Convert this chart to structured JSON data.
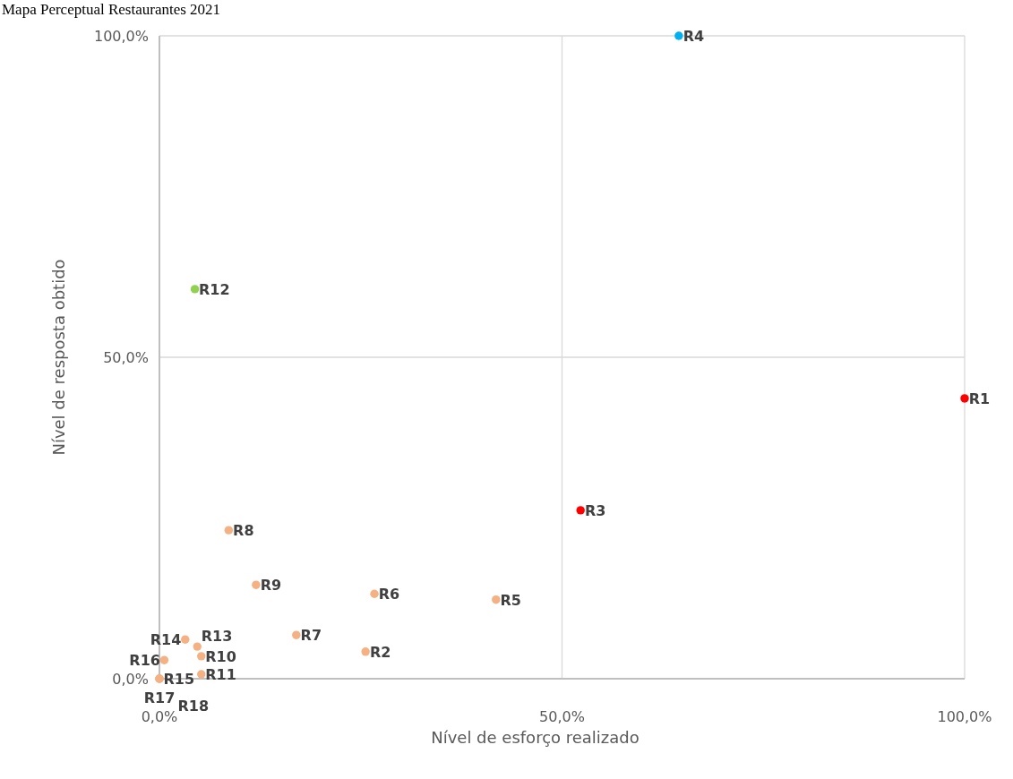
{
  "chart_data": {
    "type": "scatter",
    "title": "Mapa Perceptual Restaurantes 2021",
    "xlabel": "Nível de esforço realizado",
    "ylabel": "Nível de resposta obtido",
    "series": [
      {
        "x": [
          100,
          25.6,
          52.3,
          64.5,
          41.8,
          26.7,
          17.0,
          8.6,
          12.0,
          5.2,
          5.2,
          4.4,
          4.7,
          3.2,
          0,
          0.6,
          0,
          0
        ],
        "values": [
          43.6,
          4.2,
          26.2,
          100,
          12.3,
          13.2,
          6.8,
          23.1,
          14.6,
          3.5,
          0.7,
          60.6,
          5.0,
          6.1,
          0,
          2.9,
          0,
          0
        ],
        "colors": [
          "#ff0000",
          "#f4b183",
          "#ff0000",
          "#00b0f0",
          "#f4b183",
          "#f4b183",
          "#f4b183",
          "#f4b183",
          "#f4b183",
          "#f4b183",
          "#f4b183",
          "#92d050",
          "#f4b183",
          "#f4b183",
          "#f4b183",
          "#f4b183",
          "#f4b183",
          "#f4b183"
        ]
      }
    ],
    "annotations": [
      {
        "text": "R1",
        "x": 100,
        "y": 43.6
      },
      {
        "text": "R2",
        "x": 25.6,
        "y": 4.2
      },
      {
        "text": "R3",
        "x": 52.3,
        "y": 26.2
      },
      {
        "text": "R4",
        "x": 64.5,
        "y": 100
      },
      {
        "text": "R5",
        "x": 41.8,
        "y": 12.3
      },
      {
        "text": "R6",
        "x": 26.7,
        "y": 13.2
      },
      {
        "text": "R7",
        "x": 17.0,
        "y": 6.8
      },
      {
        "text": "R8",
        "x": 8.6,
        "y": 23.1
      },
      {
        "text": "R9",
        "x": 12.0,
        "y": 14.6
      },
      {
        "text": "R10",
        "x": 5.2,
        "y": 3.5
      },
      {
        "text": "R11",
        "x": 5.2,
        "y": 0.7
      },
      {
        "text": "R12",
        "x": 4.4,
        "y": 60.6
      },
      {
        "text": "R13",
        "x": 4.7,
        "y": 5.0
      },
      {
        "text": "R14",
        "x": 3.2,
        "y": 6.1
      },
      {
        "text": "R15",
        "x": 0,
        "y": 0
      },
      {
        "text": "R16",
        "x": 0.6,
        "y": 2.9
      },
      {
        "text": "R17",
        "x": 0,
        "y": 0
      },
      {
        "text": "R18",
        "x": 0,
        "y": 0
      }
    ],
    "xlim": [
      0,
      100
    ],
    "ylim": [
      0,
      100
    ],
    "xticks": [
      {
        "value": 0,
        "label": "0,0%"
      },
      {
        "value": 50,
        "label": "50,0%"
      },
      {
        "value": 100,
        "label": "100,0%"
      }
    ],
    "yticks": [
      {
        "value": 0,
        "label": "0,0%"
      },
      {
        "value": 50,
        "label": "50,0%"
      },
      {
        "value": 100,
        "label": "100,0%"
      }
    ],
    "grid": true,
    "marker": "circle"
  }
}
